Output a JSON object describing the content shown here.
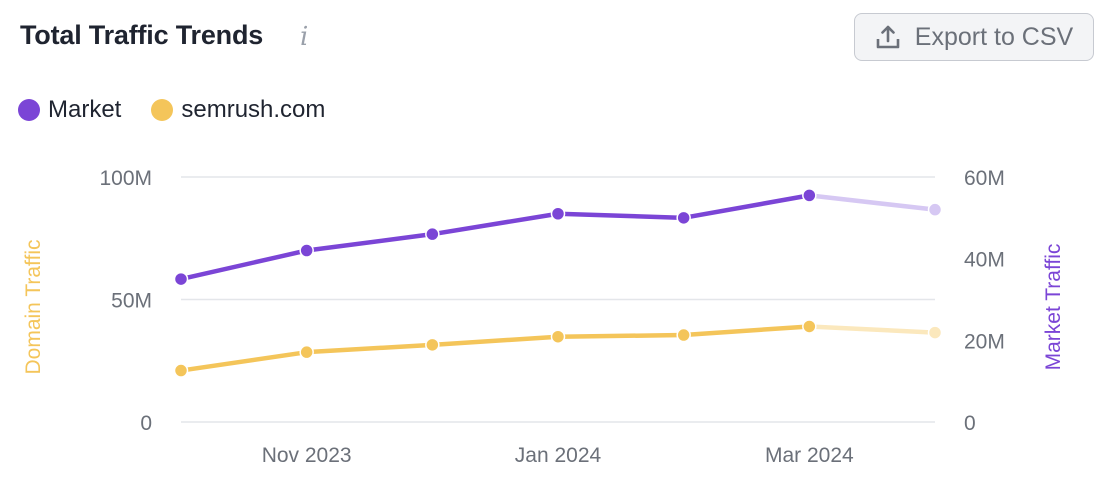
{
  "header": {
    "title": "Total Traffic Trends",
    "info_icon": "info-icon",
    "export_label": "Export to CSV",
    "export_icon": "upload-icon"
  },
  "legend": [
    {
      "label": "Market",
      "color": "#7b45d6"
    },
    {
      "label": "semrush.com",
      "color": "#f4c55a"
    }
  ],
  "chart_data": {
    "type": "line",
    "x": [
      "Oct 2023",
      "Nov 2023",
      "Dec 2023",
      "Jan 2024",
      "Feb 2024",
      "Mar 2024",
      "Apr 2024"
    ],
    "x_tick_labels": [
      "Nov 2023",
      "Jan 2024",
      "Mar 2024"
    ],
    "y_left": {
      "label": "Domain Traffic",
      "ticks": [
        "0",
        "50M",
        "100M"
      ],
      "range": [
        0,
        100000000
      ],
      "color": "#f4c55a"
    },
    "y_right": {
      "label": "Market Traffic",
      "ticks": [
        "0",
        "20M",
        "40M",
        "60M"
      ],
      "range": [
        0,
        60000000
      ],
      "color": "#7b45d6"
    },
    "series": [
      {
        "name": "Market",
        "axis": "right",
        "color": "#7b45d6",
        "faded_color": "#d6c8f3",
        "values": [
          35000000,
          42000000,
          46000000,
          51000000,
          50000000,
          55500000,
          52000000
        ],
        "projected_from_index": 5
      },
      {
        "name": "semrush.com",
        "axis": "left",
        "color": "#f4c55a",
        "faded_color": "#fbe8bd",
        "values": [
          21000000,
          28500000,
          31500000,
          34800000,
          35500000,
          39000000,
          36500000
        ],
        "projected_from_index": 5
      }
    ],
    "grid": true
  }
}
